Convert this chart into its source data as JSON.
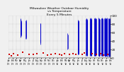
{
  "title": "Milwaukee Weather Outdoor Humidity\nvs Temperature\nEvery 5 Minutes",
  "title_fontsize": 3.2,
  "background_color": "#f0f0f0",
  "plot_bg_color": "#f0f0f0",
  "grid_color": "#aaaaaa",
  "blue_color": "#0000cc",
  "red_color": "#cc0000",
  "ylim": [
    0,
    100
  ],
  "xlim": [
    0,
    500
  ],
  "ytick_fontsize": 3.0,
  "xtick_fontsize": 1.8,
  "seed": 42,
  "n_points": 500,
  "blue_segments": [
    {
      "x": 58,
      "y_low": 55,
      "y_high": 92
    },
    {
      "x": 59,
      "y_low": 50,
      "y_high": 90
    },
    {
      "x": 60,
      "y_low": 48,
      "y_high": 93
    },
    {
      "x": 61,
      "y_low": 52,
      "y_high": 88
    },
    {
      "x": 62,
      "y_low": 55,
      "y_high": 85
    },
    {
      "x": 85,
      "y_low": 45,
      "y_high": 88
    },
    {
      "x": 86,
      "y_low": 48,
      "y_high": 90
    },
    {
      "x": 87,
      "y_low": 44,
      "y_high": 87
    },
    {
      "x": 155,
      "y_low": 35,
      "y_high": 82
    },
    {
      "x": 156,
      "y_low": 38,
      "y_high": 80
    },
    {
      "x": 157,
      "y_low": 32,
      "y_high": 78
    },
    {
      "x": 158,
      "y_low": 36,
      "y_high": 81
    },
    {
      "x": 290,
      "y_low": 20,
      "y_high": 58
    },
    {
      "x": 291,
      "y_low": 22,
      "y_high": 55
    },
    {
      "x": 340,
      "y_low": 8,
      "y_high": 88
    },
    {
      "x": 341,
      "y_low": 10,
      "y_high": 85
    },
    {
      "x": 342,
      "y_low": 7,
      "y_high": 90
    },
    {
      "x": 343,
      "y_low": 9,
      "y_high": 87
    },
    {
      "x": 344,
      "y_low": 8,
      "y_high": 89
    },
    {
      "x": 380,
      "y_low": 5,
      "y_high": 92
    },
    {
      "x": 381,
      "y_low": 6,
      "y_high": 93
    },
    {
      "x": 382,
      "y_low": 5,
      "y_high": 91
    },
    {
      "x": 383,
      "y_low": 7,
      "y_high": 94
    },
    {
      "x": 384,
      "y_low": 5,
      "y_high": 90
    },
    {
      "x": 385,
      "y_low": 6,
      "y_high": 92
    },
    {
      "x": 386,
      "y_low": 4,
      "y_high": 88
    },
    {
      "x": 400,
      "y_low": 5,
      "y_high": 94
    },
    {
      "x": 401,
      "y_low": 6,
      "y_high": 93
    },
    {
      "x": 402,
      "y_low": 5,
      "y_high": 95
    },
    {
      "x": 403,
      "y_low": 7,
      "y_high": 92
    },
    {
      "x": 404,
      "y_low": 4,
      "y_high": 91
    },
    {
      "x": 405,
      "y_low": 5,
      "y_high": 93
    },
    {
      "x": 406,
      "y_low": 6,
      "y_high": 90
    },
    {
      "x": 407,
      "y_low": 5,
      "y_high": 92
    },
    {
      "x": 420,
      "y_low": 5,
      "y_high": 94
    },
    {
      "x": 421,
      "y_low": 4,
      "y_high": 93
    },
    {
      "x": 422,
      "y_low": 6,
      "y_high": 95
    },
    {
      "x": 423,
      "y_low": 5,
      "y_high": 92
    },
    {
      "x": 424,
      "y_low": 4,
      "y_high": 91
    },
    {
      "x": 425,
      "y_low": 5,
      "y_high": 93
    },
    {
      "x": 426,
      "y_low": 6,
      "y_high": 94
    },
    {
      "x": 427,
      "y_low": 4,
      "y_high": 92
    },
    {
      "x": 428,
      "y_low": 5,
      "y_high": 90
    },
    {
      "x": 429,
      "y_low": 6,
      "y_high": 93
    },
    {
      "x": 440,
      "y_low": 5,
      "y_high": 94
    },
    {
      "x": 441,
      "y_low": 4,
      "y_high": 93
    },
    {
      "x": 442,
      "y_low": 6,
      "y_high": 95
    },
    {
      "x": 443,
      "y_low": 5,
      "y_high": 92
    },
    {
      "x": 444,
      "y_low": 4,
      "y_high": 91
    },
    {
      "x": 445,
      "y_low": 5,
      "y_high": 93
    },
    {
      "x": 446,
      "y_low": 3,
      "y_high": 90
    },
    {
      "x": 447,
      "y_low": 5,
      "y_high": 92
    },
    {
      "x": 455,
      "y_low": 4,
      "y_high": 94
    },
    {
      "x": 456,
      "y_low": 5,
      "y_high": 93
    },
    {
      "x": 457,
      "y_low": 4,
      "y_high": 95
    },
    {
      "x": 458,
      "y_low": 6,
      "y_high": 92
    },
    {
      "x": 459,
      "y_low": 5,
      "y_high": 91
    },
    {
      "x": 460,
      "y_low": 4,
      "y_high": 93
    },
    {
      "x": 461,
      "y_low": 5,
      "y_high": 94
    },
    {
      "x": 462,
      "y_low": 3,
      "y_high": 90
    },
    {
      "x": 463,
      "y_low": 4,
      "y_high": 92
    },
    {
      "x": 470,
      "y_low": 4,
      "y_high": 93
    },
    {
      "x": 471,
      "y_low": 5,
      "y_high": 95
    },
    {
      "x": 472,
      "y_low": 4,
      "y_high": 92
    },
    {
      "x": 473,
      "y_low": 3,
      "y_high": 91
    },
    {
      "x": 474,
      "y_low": 5,
      "y_high": 93
    },
    {
      "x": 475,
      "y_low": 4,
      "y_high": 94
    },
    {
      "x": 476,
      "y_low": 5,
      "y_high": 92
    },
    {
      "x": 477,
      "y_low": 3,
      "y_high": 90
    },
    {
      "x": 478,
      "y_low": 4,
      "y_high": 93
    },
    {
      "x": 479,
      "y_low": 5,
      "y_high": 91
    },
    {
      "x": 480,
      "y_low": 4,
      "y_high": 94
    },
    {
      "x": 481,
      "y_low": 3,
      "y_high": 92
    },
    {
      "x": 482,
      "y_low": 5,
      "y_high": 93
    },
    {
      "x": 483,
      "y_low": 4,
      "y_high": 95
    },
    {
      "x": 484,
      "y_low": 3,
      "y_high": 90
    },
    {
      "x": 490,
      "y_low": 3,
      "y_high": 94
    },
    {
      "x": 491,
      "y_low": 4,
      "y_high": 93
    },
    {
      "x": 492,
      "y_low": 3,
      "y_high": 92
    },
    {
      "x": 493,
      "y_low": 4,
      "y_high": 91
    },
    {
      "x": 494,
      "y_low": 3,
      "y_high": 93
    },
    {
      "x": 495,
      "y_low": 4,
      "y_high": 94
    },
    {
      "x": 496,
      "y_low": 3,
      "y_high": 92
    },
    {
      "x": 497,
      "y_low": 4,
      "y_high": 90
    },
    {
      "x": 498,
      "y_low": 3,
      "y_high": 93
    },
    {
      "x": 499,
      "y_low": 4,
      "y_high": 91
    }
  ],
  "red_points_x": [
    5,
    15,
    25,
    45,
    70,
    100,
    120,
    140,
    170,
    190,
    210,
    230,
    250,
    260,
    275,
    300,
    315,
    330,
    360,
    370,
    410,
    430,
    450,
    465,
    485
  ],
  "red_points_y": [
    8,
    5,
    10,
    6,
    12,
    8,
    7,
    9,
    11,
    6,
    8,
    10,
    7,
    6,
    9,
    8,
    10,
    7,
    8,
    11,
    9,
    7,
    10,
    6,
    8
  ],
  "yticks": [
    0,
    20,
    40,
    60,
    80,
    100
  ],
  "xtick_positions": [
    0,
    20,
    40,
    60,
    80,
    100,
    120,
    140,
    160,
    180,
    200,
    220,
    240,
    260,
    280,
    300,
    320,
    340,
    360,
    380,
    400,
    420,
    440,
    460,
    480,
    500
  ],
  "xtick_labels": [
    "Jan\n'19",
    "Feb\n'19",
    "Mar\n'19",
    "Apr\n'19",
    "May\n'19",
    "Jun\n'19",
    "Jul\n'19",
    "Aug\n'19",
    "Sep\n'19",
    "Oct\n'19",
    "Nov\n'19",
    "Dec\n'19",
    "Jan\n'20",
    "Feb\n'20",
    "Mar\n'20",
    "Apr\n'20",
    "May\n'20",
    "Jun\n'20",
    "Jul\n'20",
    "Aug\n'20",
    "Sep\n'20",
    "Oct\n'20",
    "Nov\n'20",
    "Dec\n'20",
    "Jan\n'21",
    "Feb\n'21"
  ]
}
